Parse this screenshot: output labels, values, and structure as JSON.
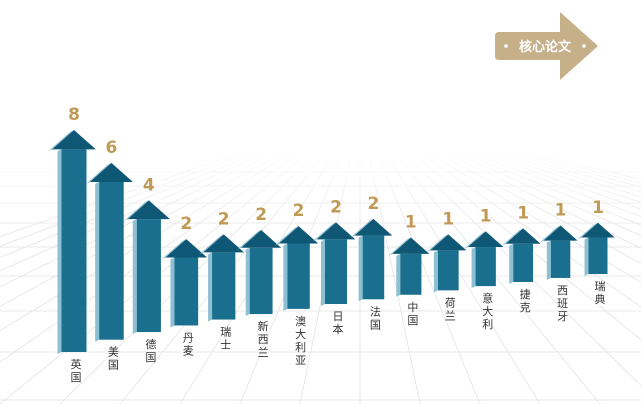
{
  "badge": {
    "label": "核心论文",
    "color": "#c5b08a"
  },
  "chart_data": {
    "type": "bar",
    "title": "",
    "xlabel": "",
    "ylabel": "",
    "ylim": [
      0,
      8
    ],
    "categories": [
      "英国",
      "美国",
      "德国",
      "丹麦",
      "瑞士",
      "新西兰",
      "澳大利亚",
      "日本",
      "法国",
      "中国",
      "荷兰",
      "意大利",
      "捷克",
      "西班牙",
      "瑞典"
    ],
    "values": [
      8,
      6,
      4,
      2,
      2,
      2,
      2,
      2,
      2,
      1,
      1,
      1,
      1,
      1,
      1
    ],
    "colors": {
      "front": "#1a6e8e",
      "side": "#8dc0d2",
      "top": "#0e5775",
      "label": "#c09a55"
    }
  }
}
